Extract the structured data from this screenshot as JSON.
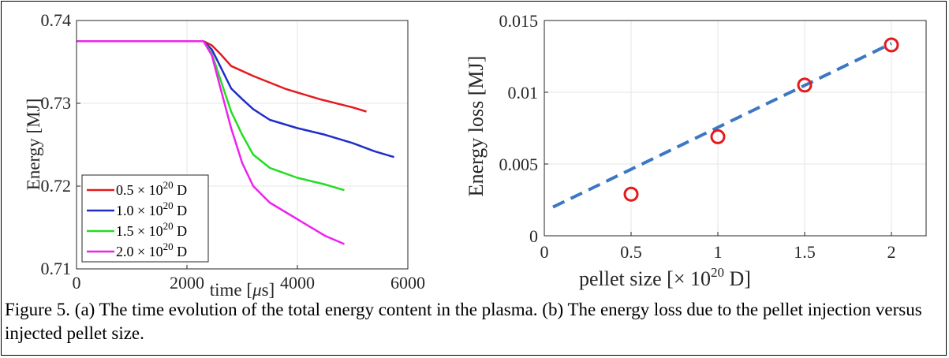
{
  "caption": "Figure 5. (a) The time evolution of the total energy content in the plasma. (b) The energy loss due to the pellet injection versus injected pellet size.",
  "chart_data": [
    {
      "id": "a",
      "type": "line",
      "xlabel_text": "time [",
      "xlabel_mu": "μ",
      "xlabel_unit": "s]",
      "ylabel": "Energy [MJ]",
      "xlim": [
        0,
        6000
      ],
      "ylim": [
        0.71,
        0.74
      ],
      "xticks": [
        "0",
        "2000",
        "4000",
        "6000"
      ],
      "yticks": [
        "0.71",
        "0.72",
        "0.73",
        "0.74"
      ],
      "grid": true,
      "legend_position": "lower-left",
      "series": [
        {
          "label_pre": "0.5 × 10",
          "label_exp": "20",
          "label_post": " D",
          "color": "#e41a1c",
          "x": [
            0,
            2300,
            2450,
            2600,
            2800,
            3200,
            3800,
            4400,
            5000,
            5250
          ],
          "y": [
            0.7375,
            0.7375,
            0.737,
            0.736,
            0.7345,
            0.7333,
            0.7317,
            0.7305,
            0.7295,
            0.729
          ]
        },
        {
          "label_pre": "1.0 × 10",
          "label_exp": "20",
          "label_post": " D",
          "color": "#1f2ec9",
          "x": [
            0,
            2300,
            2450,
            2600,
            2800,
            3000,
            3200,
            3500,
            4000,
            4500,
            5000,
            5400,
            5750
          ],
          "y": [
            0.7375,
            0.7375,
            0.7365,
            0.7345,
            0.7318,
            0.7305,
            0.7293,
            0.728,
            0.727,
            0.7262,
            0.7252,
            0.7242,
            0.7235
          ]
        },
        {
          "label_pre": "1.5 × 10",
          "label_exp": "20",
          "label_post": " D",
          "color": "#22dd22",
          "x": [
            0,
            2300,
            2450,
            2600,
            2800,
            3000,
            3200,
            3500,
            4000,
            4500,
            4850
          ],
          "y": [
            0.7375,
            0.7375,
            0.736,
            0.733,
            0.729,
            0.7262,
            0.7238,
            0.7222,
            0.721,
            0.7202,
            0.7195
          ]
        },
        {
          "label_pre": "2.0 × 10",
          "label_exp": "20",
          "label_post": " D",
          "color": "#ee22ee",
          "x": [
            0,
            2300,
            2450,
            2600,
            2800,
            3000,
            3200,
            3500,
            4000,
            4500,
            4850
          ],
          "y": [
            0.7375,
            0.7375,
            0.7358,
            0.732,
            0.727,
            0.7228,
            0.72,
            0.718,
            0.716,
            0.714,
            0.713
          ]
        }
      ]
    },
    {
      "id": "b",
      "type": "scatter",
      "xlabel_text": "pellet size [× 10",
      "xlabel_exp": "20",
      "xlabel_unit": " D]",
      "ylabel": "Energy loss [MJ]",
      "xlim": [
        0,
        2.2
      ],
      "ylim": [
        0,
        0.015
      ],
      "xticks": [
        "0",
        "0.5",
        "1",
        "1.5",
        "2"
      ],
      "yticks": [
        "0",
        "0.005",
        "0.01",
        "0.015"
      ],
      "grid": true,
      "points": {
        "x": [
          0.5,
          1.0,
          1.5,
          2.0
        ],
        "y": [
          0.0029,
          0.0069,
          0.0105,
          0.0133
        ],
        "color": "#e41a1c"
      },
      "fit": {
        "x": [
          0.05,
          2.0
        ],
        "y": [
          0.002,
          0.0134
        ],
        "color": "#3b78c4"
      }
    }
  ]
}
